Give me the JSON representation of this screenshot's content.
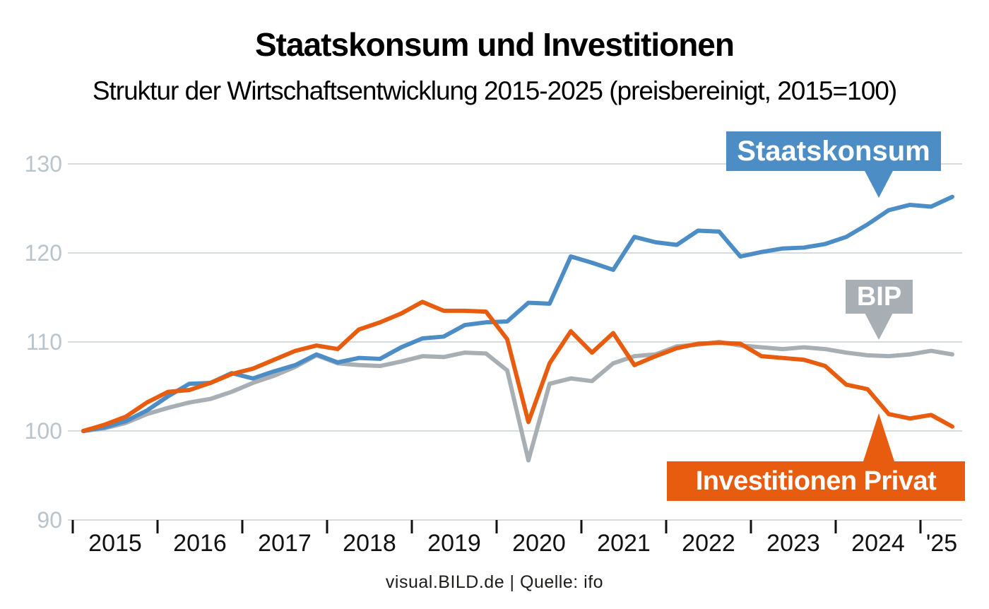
{
  "header": {
    "title": "Staatskonsum und Investitionen",
    "subtitle": "Struktur der Wirtschaftsentwicklung 2015-2025 (preisbereinigt, 2015=100)"
  },
  "callouts": {
    "staatskonsum": "Staatskonsum",
    "bip": "BIP",
    "investitionen": "Investitionen Privat"
  },
  "footer": {
    "credit": "visual.BILD.de | Quelle: ifo"
  },
  "colors": {
    "staatskonsum_blue": "#4d8dc6",
    "bip_gray": "#a8afb4",
    "investitionen_orange": "#e85c0f",
    "gridline": "#d8dcde",
    "y_tick_label": "#b9c4cc",
    "axis_tick": "#111111"
  },
  "chart_data": {
    "type": "line",
    "title": "Staatskonsum und Investitionen",
    "subtitle": "Struktur der Wirtschaftsentwicklung 2015-2025 (preisbereinigt, 2015=100)",
    "x_unit": "quarter",
    "x_start": "2015-Q1",
    "x_end": "2025-Q2",
    "x_tick_labels": [
      "2015",
      "2016",
      "2017",
      "2018",
      "2019",
      "2020",
      "2021",
      "2022",
      "2023",
      "2024",
      "'25"
    ],
    "y_ticks": [
      90,
      100,
      110,
      120,
      130
    ],
    "ylim": [
      88,
      132
    ],
    "grid": true,
    "legend_position": "inline-callouts",
    "series": [
      {
        "name": "Staatskonsum",
        "color": "#4d8dc6",
        "values": [
          100.0,
          100.4,
          101.1,
          102.3,
          103.9,
          105.3,
          105.4,
          106.5,
          105.9,
          106.7,
          107.4,
          108.6,
          107.7,
          108.2,
          108.1,
          109.4,
          110.4,
          110.6,
          111.9,
          112.2,
          112.3,
          114.4,
          114.3,
          119.6,
          118.9,
          118.1,
          121.8,
          121.2,
          120.9,
          122.5,
          122.4,
          119.6,
          120.1,
          120.5,
          120.6,
          121.0,
          121.8,
          123.2,
          124.8,
          125.4,
          125.2,
          126.3
        ]
      },
      {
        "name": "BIP",
        "color": "#a8afb4",
        "values": [
          100.0,
          100.3,
          100.9,
          101.9,
          102.6,
          103.2,
          103.6,
          104.4,
          105.4,
          106.2,
          107.2,
          108.5,
          107.6,
          107.4,
          107.3,
          107.8,
          108.4,
          108.3,
          108.8,
          108.7,
          106.8,
          96.7,
          105.3,
          105.9,
          105.6,
          107.6,
          108.4,
          108.6,
          109.5,
          109.7,
          110.0,
          109.6,
          109.4,
          109.2,
          109.4,
          109.2,
          108.8,
          108.5,
          108.4,
          108.6,
          109.0,
          108.6
        ]
      },
      {
        "name": "Investitionen Privat",
        "color": "#e85c0f",
        "values": [
          100.0,
          100.7,
          101.6,
          103.2,
          104.4,
          104.6,
          105.4,
          106.4,
          107.0,
          108.0,
          109.0,
          109.6,
          109.2,
          111.4,
          112.2,
          113.2,
          114.5,
          113.5,
          113.5,
          113.4,
          110.3,
          101.0,
          107.6,
          111.2,
          108.8,
          111.0,
          107.4,
          108.4,
          109.3,
          109.8,
          109.9,
          109.8,
          108.4,
          108.2,
          108.0,
          107.3,
          105.2,
          104.7,
          101.9,
          101.4,
          101.8,
          100.5
        ]
      }
    ],
    "source": "Quelle: ifo"
  }
}
